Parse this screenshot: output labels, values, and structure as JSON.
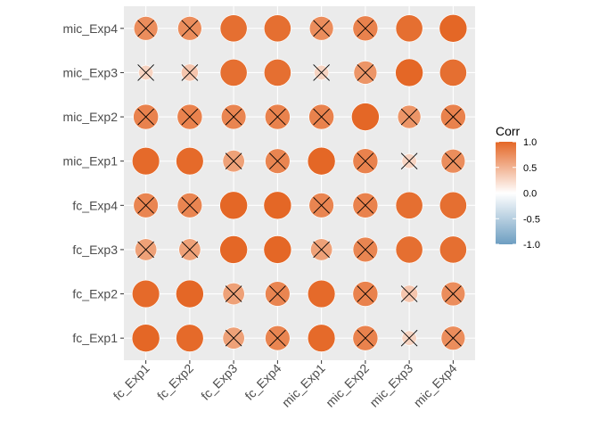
{
  "chart_data": {
    "type": "correlogram",
    "x_labels": [
      "fc_Exp1",
      "fc_Exp2",
      "fc_Exp3",
      "fc_Exp4",
      "mic_Exp1",
      "mic_Exp2",
      "mic_Exp3",
      "mic_Exp4"
    ],
    "y_labels": [
      "fc_Exp1",
      "fc_Exp2",
      "fc_Exp3",
      "fc_Exp4",
      "mic_Exp1",
      "mic_Exp2",
      "mic_Exp3",
      "mic_Exp4"
    ],
    "matrix": [
      [
        1.0,
        0.98,
        0.62,
        0.8,
        0.98,
        0.82,
        0.28,
        0.75
      ],
      [
        0.98,
        1.0,
        0.62,
        0.8,
        0.98,
        0.82,
        0.38,
        0.75
      ],
      [
        0.62,
        0.62,
        1.0,
        1.0,
        0.62,
        0.8,
        0.95,
        0.95
      ],
      [
        0.8,
        0.8,
        1.0,
        1.0,
        0.8,
        0.82,
        0.95,
        0.95
      ],
      [
        0.98,
        0.98,
        0.62,
        0.8,
        1.0,
        0.82,
        0.28,
        0.75
      ],
      [
        0.82,
        0.82,
        0.8,
        0.82,
        0.82,
        1.0,
        0.7,
        0.82
      ],
      [
        0.28,
        0.38,
        0.95,
        0.95,
        0.28,
        0.7,
        1.0,
        0.95
      ],
      [
        0.75,
        0.75,
        0.95,
        0.95,
        0.75,
        0.82,
        0.95,
        1.0
      ]
    ],
    "insignificant": [
      [
        false,
        false,
        true,
        true,
        false,
        true,
        true,
        true
      ],
      [
        false,
        false,
        true,
        true,
        false,
        true,
        true,
        true
      ],
      [
        true,
        true,
        false,
        false,
        true,
        true,
        false,
        false
      ],
      [
        true,
        true,
        false,
        false,
        true,
        true,
        false,
        false
      ],
      [
        false,
        false,
        true,
        true,
        false,
        true,
        true,
        true
      ],
      [
        true,
        true,
        true,
        true,
        true,
        false,
        true,
        true
      ],
      [
        true,
        true,
        false,
        false,
        true,
        true,
        false,
        false
      ],
      [
        true,
        true,
        false,
        false,
        true,
        true,
        false,
        false
      ]
    ],
    "legend": {
      "title": "Corr",
      "ticks": [
        "1.0",
        "0.5",
        "0.0",
        "-0.5",
        "-1.0"
      ],
      "tick_values": [
        1.0,
        0.5,
        0.0,
        -0.5,
        -1.0
      ],
      "range": [
        -1,
        1
      ],
      "colors": {
        "low": "#6d9ec1",
        "mid": "#ffffff",
        "high": "#e46726"
      }
    },
    "panel_background": "#ebebeb",
    "grid": true,
    "legend_position": "right",
    "cross_color": "#000000"
  }
}
